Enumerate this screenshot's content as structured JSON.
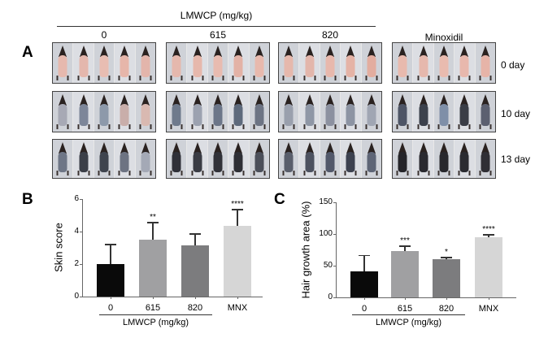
{
  "panelA": {
    "letter": "A",
    "group_header": "LMWCP (mg/kg)",
    "columns": [
      "0",
      "615",
      "820",
      "Minoxidil"
    ],
    "rows": [
      "0 day",
      "10 day",
      "13 day"
    ],
    "mice_per_panel": 5
  },
  "panelB": {
    "letter": "B"
  },
  "panelC": {
    "letter": "C"
  },
  "chart_data": [
    {
      "type": "bar",
      "title": "",
      "ylabel": "Skin score",
      "xlabel": "LMWCP (mg/kg)",
      "categories": [
        "0",
        "615",
        "820",
        "MNX"
      ],
      "values": [
        2.0,
        3.5,
        3.15,
        4.35
      ],
      "error_upper": [
        3.25,
        4.6,
        3.9,
        5.4
      ],
      "significance": [
        "",
        "**",
        "",
        "****"
      ],
      "bar_colors": [
        "#0a0a0a",
        "#a0a0a2",
        "#7c7c7e",
        "#d6d6d6"
      ],
      "ylim": [
        0,
        6
      ],
      "yticks": [
        0,
        2,
        4,
        6
      ],
      "grid": false,
      "group_underline_categories": [
        "0",
        "615",
        "820"
      ]
    },
    {
      "type": "bar",
      "title": "",
      "ylabel": "Hair growth area (%)",
      "xlabel": "LMWCP (mg/kg)",
      "categories": [
        "0",
        "615",
        "820",
        "MNX"
      ],
      "values": [
        41,
        73,
        60,
        95
      ],
      "error_upper": [
        67,
        82,
        64,
        100
      ],
      "significance": [
        "",
        "***",
        "*",
        "****"
      ],
      "bar_colors": [
        "#0a0a0a",
        "#a0a0a2",
        "#7c7c7e",
        "#d6d6d6"
      ],
      "ylim": [
        0,
        150
      ],
      "yticks": [
        0,
        50,
        100,
        150
      ],
      "grid": false,
      "group_underline_categories": [
        "0",
        "615",
        "820"
      ]
    }
  ]
}
